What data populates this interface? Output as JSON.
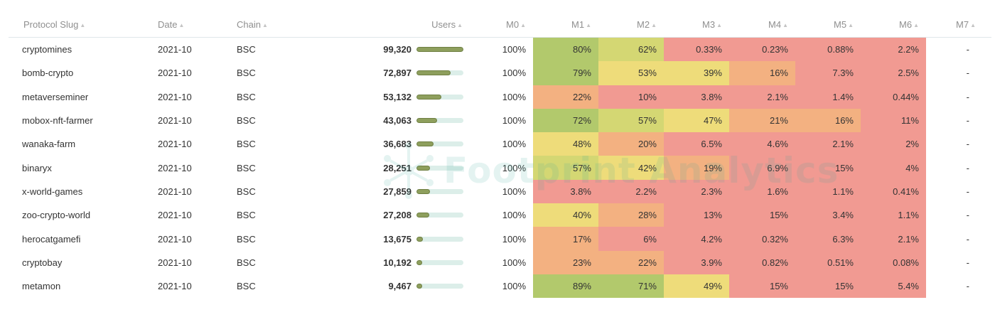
{
  "columns": {
    "slug": "Protocol Slug",
    "date": "Date",
    "chain": "Chain",
    "users": "Users",
    "m": [
      "M0",
      "M1",
      "M2",
      "M3",
      "M4",
      "M5",
      "M6",
      "M7"
    ]
  },
  "watermark": "Footprint Analytics",
  "colors": {
    "green": "#b2c96c",
    "light_green": "#d4d773",
    "yellow": "#eedc7a",
    "orange": "#f3b181",
    "red": "#f19a92",
    "bar_fill": "#8e9f5d",
    "bar_track": "#dceee9"
  },
  "rows": [
    {
      "slug": "cryptomines",
      "date": "2021-10",
      "chain": "BSC",
      "users": "99,320",
      "users_value": 99320,
      "m0": "100%",
      "m": [
        "80%",
        "62%",
        "0.33%",
        "0.23%",
        "0.88%",
        "2.2%"
      ],
      "m7": "-"
    },
    {
      "slug": "bomb-crypto",
      "date": "2021-10",
      "chain": "BSC",
      "users": "72,897",
      "users_value": 72897,
      "m0": "100%",
      "m": [
        "79%",
        "53%",
        "39%",
        "16%",
        "7.3%",
        "2.5%"
      ],
      "m7": "-"
    },
    {
      "slug": "metaverseminer",
      "date": "2021-10",
      "chain": "BSC",
      "users": "53,132",
      "users_value": 53132,
      "m0": "100%",
      "m": [
        "22%",
        "10%",
        "3.8%",
        "2.1%",
        "1.4%",
        "0.44%"
      ],
      "m7": "-"
    },
    {
      "slug": "mobox-nft-farmer",
      "date": "2021-10",
      "chain": "BSC",
      "users": "43,063",
      "users_value": 43063,
      "m0": "100%",
      "m": [
        "72%",
        "57%",
        "47%",
        "21%",
        "16%",
        "11%"
      ],
      "m7": "-"
    },
    {
      "slug": "wanaka-farm",
      "date": "2021-10",
      "chain": "BSC",
      "users": "36,683",
      "users_value": 36683,
      "m0": "100%",
      "m": [
        "48%",
        "20%",
        "6.5%",
        "4.6%",
        "2.1%",
        "2%"
      ],
      "m7": "-"
    },
    {
      "slug": "binaryx",
      "date": "2021-10",
      "chain": "BSC",
      "users": "28,251",
      "users_value": 28251,
      "m0": "100%",
      "m": [
        "57%",
        "42%",
        "19%",
        "6.9%",
        "15%",
        "4%"
      ],
      "m7": "-"
    },
    {
      "slug": "x-world-games",
      "date": "2021-10",
      "chain": "BSC",
      "users": "27,859",
      "users_value": 27859,
      "m0": "100%",
      "m": [
        "3.8%",
        "2.2%",
        "2.3%",
        "1.6%",
        "1.1%",
        "0.41%"
      ],
      "m7": "-"
    },
    {
      "slug": "zoo-crypto-world",
      "date": "2021-10",
      "chain": "BSC",
      "users": "27,208",
      "users_value": 27208,
      "m0": "100%",
      "m": [
        "40%",
        "28%",
        "13%",
        "15%",
        "3.4%",
        "1.1%"
      ],
      "m7": "-"
    },
    {
      "slug": "herocatgamefi",
      "date": "2021-10",
      "chain": "BSC",
      "users": "13,675",
      "users_value": 13675,
      "m0": "100%",
      "m": [
        "17%",
        "6%",
        "4.2%",
        "0.32%",
        "6.3%",
        "2.1%"
      ],
      "m7": "-"
    },
    {
      "slug": "cryptobay",
      "date": "2021-10",
      "chain": "BSC",
      "users": "10,192",
      "users_value": 10192,
      "m0": "100%",
      "m": [
        "23%",
        "22%",
        "3.9%",
        "0.82%",
        "0.51%",
        "0.08%"
      ],
      "m7": "-"
    },
    {
      "slug": "metamon",
      "date": "2021-10",
      "chain": "BSC",
      "users": "9,467",
      "users_value": 9467,
      "m0": "100%",
      "m": [
        "89%",
        "71%",
        "49%",
        "15%",
        "15%",
        "5.4%"
      ],
      "m7": "-"
    }
  ]
}
